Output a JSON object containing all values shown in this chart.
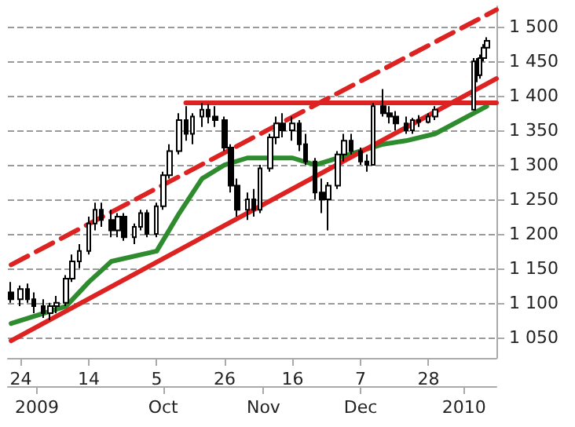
{
  "chart_data": {
    "type": "candlestick",
    "x": [
      "2009-08-21",
      "2009-08-24",
      "2009-08-26",
      "2009-08-28",
      "2009-08-31",
      "2009-09-02",
      "2009-09-04",
      "2009-09-07",
      "2009-09-09",
      "2009-09-11",
      "2009-09-14",
      "2009-09-16",
      "2009-09-18",
      "2009-09-21",
      "2009-09-23",
      "2009-09-25",
      "2009-09-28",
      "2009-09-30",
      "2009-10-02",
      "2009-10-05",
      "2009-10-07",
      "2009-10-09",
      "2009-10-12",
      "2009-10-14",
      "2009-10-16",
      "2009-10-19",
      "2009-10-21",
      "2009-10-23",
      "2009-10-26",
      "2009-10-28",
      "2009-10-30",
      "2009-11-02",
      "2009-11-04",
      "2009-11-06",
      "2009-11-09",
      "2009-11-11",
      "2009-11-13",
      "2009-11-16",
      "2009-11-18",
      "2009-11-20",
      "2009-11-23",
      "2009-11-25",
      "2009-11-27",
      "2009-11-30",
      "2009-12-02",
      "2009-12-04",
      "2009-12-07",
      "2009-12-09",
      "2009-12-11",
      "2009-12-14",
      "2009-12-16",
      "2009-12-18",
      "2009-12-21",
      "2009-12-23",
      "2009-12-25",
      "2009-12-28",
      "2009-12-30",
      "2010-01-11",
      "2010-01-12",
      "2010-01-13",
      "2010-01-14",
      "2010-01-15"
    ],
    "ohlc": [
      [
        1115,
        1130,
        1100,
        1105
      ],
      [
        1105,
        1125,
        1095,
        1120
      ],
      [
        1120,
        1128,
        1100,
        1105
      ],
      [
        1105,
        1115,
        1085,
        1095
      ],
      [
        1095,
        1105,
        1078,
        1085
      ],
      [
        1085,
        1100,
        1075,
        1095
      ],
      [
        1095,
        1110,
        1085,
        1100
      ],
      [
        1100,
        1140,
        1095,
        1135
      ],
      [
        1135,
        1170,
        1130,
        1160
      ],
      [
        1160,
        1185,
        1150,
        1175
      ],
      [
        1175,
        1225,
        1170,
        1215
      ],
      [
        1215,
        1245,
        1205,
        1235
      ],
      [
        1235,
        1245,
        1210,
        1220
      ],
      [
        1220,
        1235,
        1195,
        1205
      ],
      [
        1205,
        1230,
        1195,
        1225
      ],
      [
        1225,
        1230,
        1190,
        1195
      ],
      [
        1195,
        1215,
        1185,
        1210
      ],
      [
        1210,
        1235,
        1205,
        1230
      ],
      [
        1230,
        1235,
        1195,
        1200
      ],
      [
        1200,
        1245,
        1195,
        1240
      ],
      [
        1240,
        1290,
        1235,
        1285
      ],
      [
        1285,
        1330,
        1280,
        1320
      ],
      [
        1320,
        1375,
        1315,
        1365
      ],
      [
        1365,
        1385,
        1335,
        1345
      ],
      [
        1345,
        1375,
        1330,
        1370
      ],
      [
        1370,
        1390,
        1355,
        1380
      ],
      [
        1380,
        1388,
        1360,
        1370
      ],
      [
        1370,
        1385,
        1355,
        1365
      ],
      [
        1365,
        1370,
        1320,
        1325
      ],
      [
        1325,
        1330,
        1260,
        1270
      ],
      [
        1270,
        1280,
        1225,
        1235
      ],
      [
        1235,
        1260,
        1220,
        1250
      ],
      [
        1250,
        1265,
        1225,
        1235
      ],
      [
        1235,
        1300,
        1230,
        1295
      ],
      [
        1295,
        1345,
        1290,
        1340
      ],
      [
        1340,
        1370,
        1330,
        1360
      ],
      [
        1360,
        1375,
        1340,
        1350
      ],
      [
        1350,
        1370,
        1335,
        1360
      ],
      [
        1360,
        1365,
        1320,
        1330
      ],
      [
        1330,
        1345,
        1300,
        1305
      ],
      [
        1305,
        1310,
        1250,
        1260
      ],
      [
        1260,
        1280,
        1230,
        1250
      ],
      [
        1250,
        1275,
        1205,
        1270
      ],
      [
        1270,
        1320,
        1265,
        1315
      ],
      [
        1315,
        1345,
        1305,
        1335
      ],
      [
        1335,
        1345,
        1315,
        1320
      ],
      [
        1320,
        1325,
        1300,
        1305
      ],
      [
        1305,
        1315,
        1290,
        1300
      ],
      [
        1300,
        1390,
        1300,
        1385
      ],
      [
        1385,
        1410,
        1370,
        1375
      ],
      [
        1375,
        1385,
        1360,
        1370
      ],
      [
        1370,
        1378,
        1350,
        1360
      ],
      [
        1360,
        1370,
        1345,
        1350
      ],
      [
        1350,
        1368,
        1345,
        1365
      ],
      [
        1365,
        1372,
        1355,
        1362
      ],
      [
        1362,
        1375,
        1360,
        1370
      ],
      [
        1370,
        1385,
        1365,
        1380
      ],
      [
        1380,
        1455,
        1380,
        1450
      ],
      [
        1450,
        1455,
        1420,
        1430
      ],
      [
        1430,
        1460,
        1425,
        1455
      ],
      [
        1455,
        1475,
        1450,
        1470
      ],
      [
        1470,
        1485,
        1462,
        1480
      ]
    ],
    "series": [
      {
        "type": "line",
        "color": "#2e8b2e",
        "x": [
          "2009-08-21",
          "2009-09-07",
          "2009-09-14",
          "2009-09-21",
          "2009-10-05",
          "2009-10-12",
          "2009-10-19",
          "2009-10-26",
          "2009-11-02",
          "2009-11-16",
          "2009-11-23",
          "2009-12-07",
          "2009-12-14",
          "2009-12-21",
          "2009-12-30",
          "2010-01-15"
        ],
        "values": [
          1070,
          1095,
          1130,
          1160,
          1175,
          1230,
          1280,
          1300,
          1310,
          1310,
          1300,
          1320,
          1330,
          1335,
          1345,
          1385
        ]
      },
      {
        "type": "line",
        "color": "#dd2222",
        "line_style": "solid",
        "x": [
          "2009-08-21",
          "2010-01-18"
        ],
        "values": [
          1045,
          1425
        ]
      },
      {
        "type": "line",
        "color": "#dd2222",
        "line_style": "dashed",
        "x": [
          "2009-08-21",
          "2010-01-18"
        ],
        "values": [
          1155,
          1525
        ]
      },
      {
        "type": "line",
        "color": "#dd2222",
        "line_style": "solid",
        "x": [
          "2009-10-14",
          "2010-01-18"
        ],
        "values": [
          1390,
          1390
        ]
      }
    ],
    "xlim": [
      "2009-08-20",
      "2010-01-18"
    ],
    "xticks": [
      {
        "value": "2009-08-24",
        "label": "24"
      },
      {
        "value": "2009-09-14",
        "label": "14"
      },
      {
        "value": "2009-10-05",
        "label": "5"
      },
      {
        "value": "2009-10-26",
        "label": "26"
      },
      {
        "value": "2009-11-16",
        "label": "16"
      },
      {
        "value": "2009-12-07",
        "label": "7"
      },
      {
        "value": "2009-12-28",
        "label": "28"
      }
    ],
    "x2lim": [
      "2009-08-20",
      "2010-01-18"
    ],
    "x2ticks": [
      {
        "value": "2009-08-29",
        "label": "2009"
      },
      {
        "value": "2009-10-07",
        "label": "Oct"
      },
      {
        "value": "2009-11-07",
        "label": "Nov"
      },
      {
        "value": "2009-12-07",
        "label": "Dec"
      },
      {
        "value": "2010-01-08",
        "label": "2010"
      }
    ],
    "ylim": [
      1020,
      1530
    ],
    "yticks": [
      {
        "value": 1050,
        "label": "1 050"
      },
      {
        "value": 1100,
        "label": "1 100"
      },
      {
        "value": 1150,
        "label": "1 150"
      },
      {
        "value": 1200,
        "label": "1 200"
      },
      {
        "value": 1250,
        "label": "1 250"
      },
      {
        "value": 1300,
        "label": "1 300"
      },
      {
        "value": 1350,
        "label": "1 350"
      },
      {
        "value": 1400,
        "label": "1 400"
      },
      {
        "value": 1450,
        "label": "1 450"
      },
      {
        "value": 1500,
        "label": "1 500"
      }
    ],
    "grid": "y"
  }
}
